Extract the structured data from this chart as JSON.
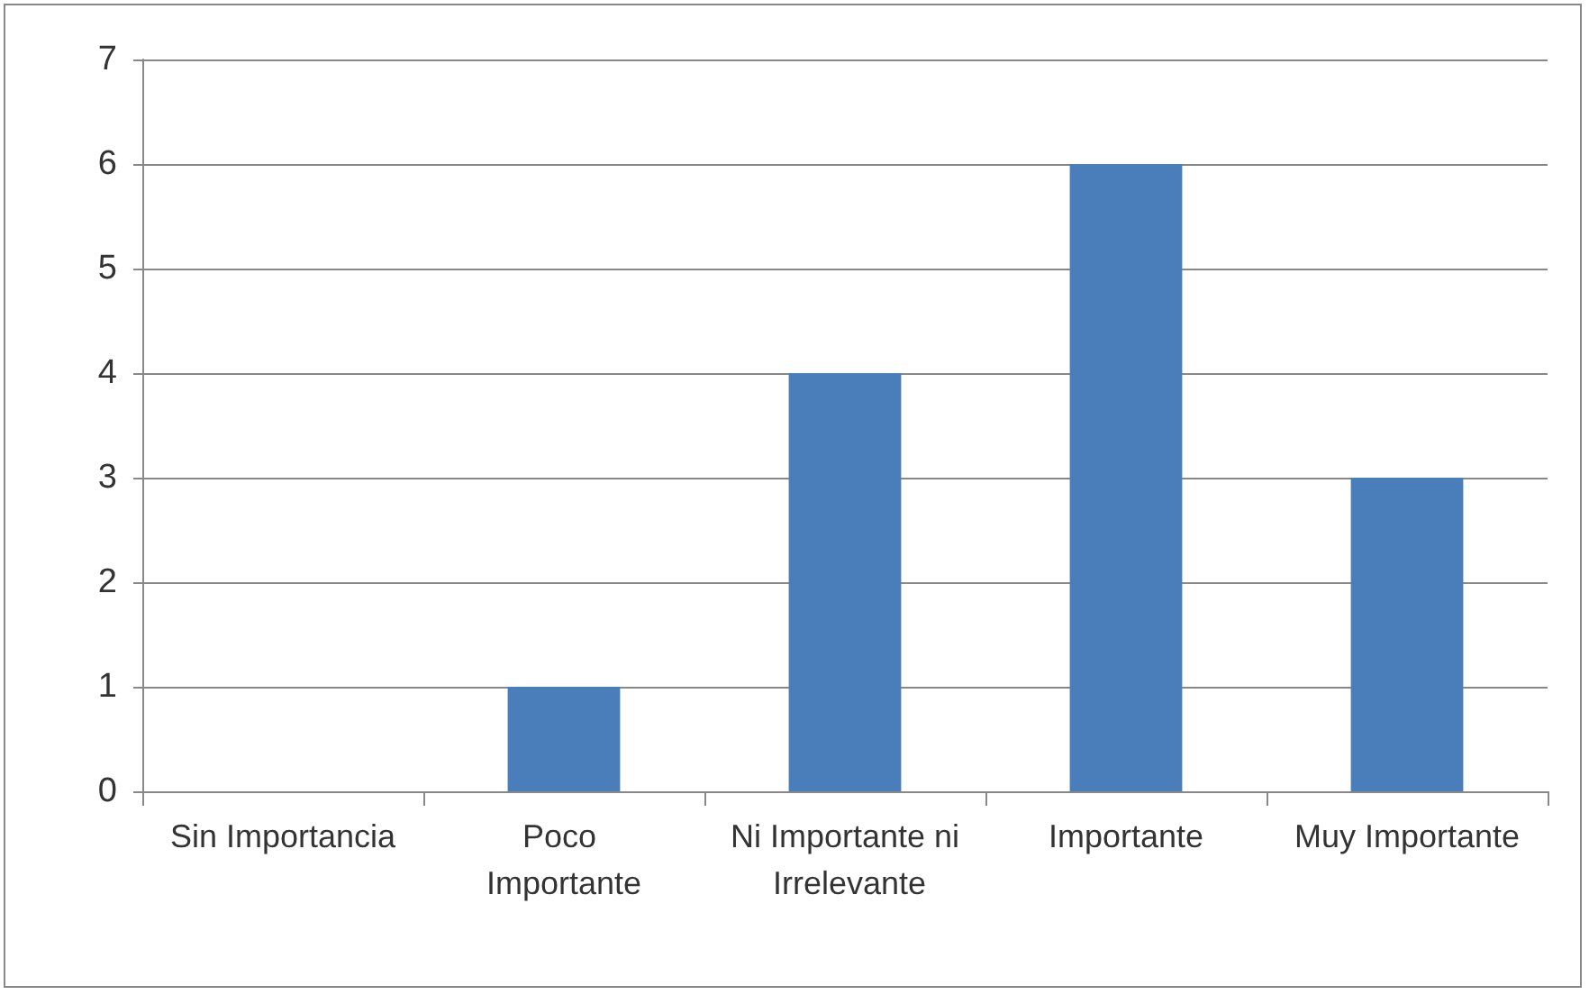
{
  "chart_data": {
    "type": "bar",
    "categories": [
      "Sin Importancia",
      "Poco Importante",
      "Ni Importante ni Irrelevante",
      "Importante",
      "Muy Importante"
    ],
    "values": [
      0,
      1,
      4,
      6,
      3
    ],
    "color": "#4a7ebb",
    "ylim": [
      0,
      7
    ],
    "yticks": [
      0,
      1,
      2,
      3,
      4,
      5,
      6,
      7
    ],
    "grid": "y"
  }
}
